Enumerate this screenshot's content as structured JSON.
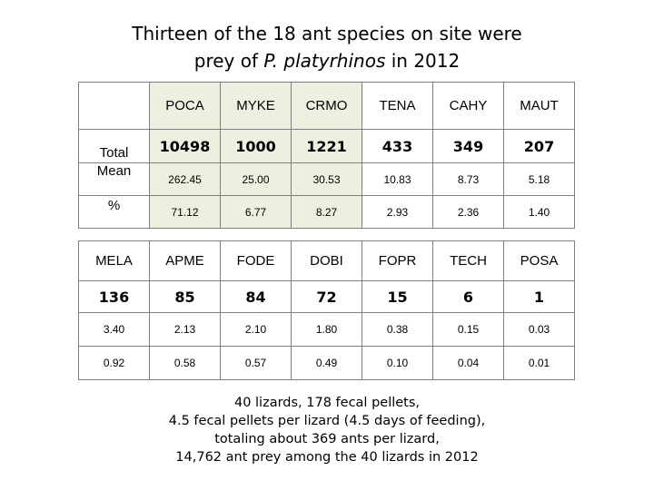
{
  "title": {
    "line1": "Thirteen of the 18 ant species on site were",
    "line2_prefix": "prey of ",
    "line2_species": "P. platyrhinos",
    "line2_suffix": " in 2012"
  },
  "table1": {
    "row_labels": [
      "Total",
      "Mean",
      "%"
    ],
    "species": [
      "POCA",
      "MYKE",
      "CRMO",
      "TENA",
      "CAHY",
      "MAUT"
    ],
    "totals": [
      "10498",
      "1000",
      "1221",
      "433",
      "349",
      "207"
    ],
    "means": [
      "262.45",
      "25.00",
      "30.53",
      "10.83",
      "8.73",
      "5.18"
    ],
    "percents": [
      "71.12",
      "6.77",
      "8.27",
      "2.93",
      "2.36",
      "1.40"
    ]
  },
  "table2": {
    "species": [
      "MELA",
      "APME",
      "FODE",
      "DOBI",
      "FOPR",
      "TECH",
      "POSA"
    ],
    "totals": [
      "136",
      "85",
      "84",
      "72",
      "15",
      "6",
      "1"
    ],
    "means": [
      "3.40",
      "2.13",
      "2.10",
      "1.80",
      "0.38",
      "0.15",
      "0.03"
    ],
    "percents": [
      "0.92",
      "0.58",
      "0.57",
      "0.49",
      "0.10",
      "0.04",
      "0.01"
    ]
  },
  "notes": [
    "40 lizards, 178 fecal pellets,",
    "4.5 fecal pellets per lizard (4.5 days of feeding),",
    "totaling about 369 ants per lizard,",
    "14,762 ant prey among the 40 lizards in 2012"
  ],
  "colors": {
    "highlight": "#ebf1de",
    "border": "#7f7f7f"
  }
}
